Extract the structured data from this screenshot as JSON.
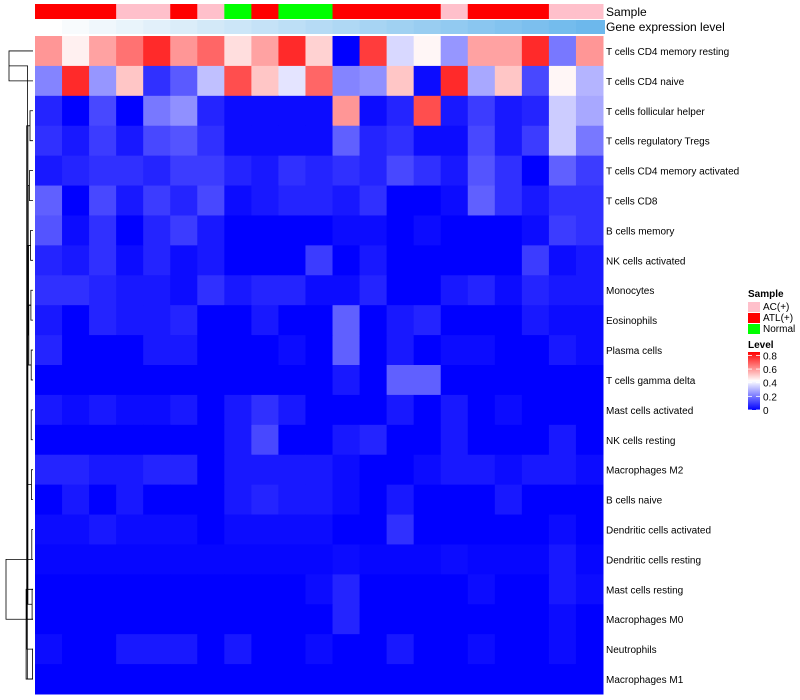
{
  "chart_data": {
    "type": "heatmap",
    "annotation_labels": {
      "sample": "Sample",
      "gene_expression": "Gene expression level"
    },
    "legend_sample": {
      "title": "Sample",
      "entries": [
        {
          "label": "AC(+)",
          "color": "#ffc0cb"
        },
        {
          "label": "ATL(+)",
          "color": "#ff0000"
        },
        {
          "label": "Normal",
          "color": "#00ff00"
        }
      ]
    },
    "legend_level": {
      "title": "Level",
      "ticks": [
        "0.8",
        "0.6",
        "0.4",
        "0.2",
        "0"
      ],
      "tick_values": [
        0.8,
        0.6,
        0.4,
        0.2,
        0.0
      ],
      "range": [
        0,
        0.85
      ]
    },
    "sample_groups": [
      "ATL(+)",
      "ATL(+)",
      "ATL(+)",
      "AC(+)",
      "AC(+)",
      "ATL(+)",
      "AC(+)",
      "Normal",
      "ATL(+)",
      "Normal",
      "Normal",
      "ATL(+)",
      "ATL(+)",
      "ATL(+)",
      "ATL(+)",
      "AC(+)",
      "ATL(+)",
      "ATL(+)",
      "ATL(+)",
      "AC(+)",
      "AC(+)"
    ],
    "gene_expression_colors": [
      "#ffffff",
      "#f8fbfd",
      "#f0f7fc",
      "#e9f4fb",
      "#e2f0fa",
      "#dbedf9",
      "#d3e9f8",
      "#cce6f8",
      "#c5e2f7",
      "#bddff6",
      "#b6dbf5",
      "#afd8f4",
      "#a7d4f3",
      "#a0d1f2",
      "#99cdf1",
      "#92caf1",
      "#8ac6f0",
      "#83c3ef",
      "#7cbfee",
      "#74bced",
      "#6db8ec"
    ],
    "rows": [
      "T cells CD4 memory resting",
      "T cells CD4 naive",
      "T cells follicular helper",
      "T cells regulatory  Tregs",
      "T cells CD4 memory activated",
      "T cells CD8",
      "B cells memory",
      "NK cells activated",
      "Monocytes",
      "Eosinophils",
      "Plasma cells",
      "T cells gamma delta",
      "Mast cells activated",
      "NK cells resting",
      "Macrophages M2",
      "B cells naive",
      "Dendritic cells activated",
      "Dendritic cells resting",
      "Mast cells resting",
      "Macrophages M0",
      "Neutrophils",
      "Macrophages M1"
    ],
    "values": [
      [
        0.6,
        0.45,
        0.58,
        0.66,
        0.78,
        0.6,
        0.68,
        0.48,
        0.58,
        0.78,
        0.5,
        0.0,
        0.75,
        0.36,
        0.44,
        0.25,
        0.58,
        0.58,
        0.78,
        0.2,
        0.6
      ],
      [
        0.22,
        0.78,
        0.25,
        0.52,
        0.08,
        0.15,
        0.32,
        0.72,
        0.52,
        0.38,
        0.68,
        0.22,
        0.24,
        0.52,
        0.02,
        0.78,
        0.28,
        0.52,
        0.12,
        0.44,
        0.3
      ],
      [
        0.06,
        0.0,
        0.12,
        0.0,
        0.2,
        0.24,
        0.06,
        0.02,
        0.02,
        0.02,
        0.02,
        0.6,
        0.02,
        0.06,
        0.72,
        0.04,
        0.1,
        0.04,
        0.06,
        0.34,
        0.28
      ],
      [
        0.08,
        0.04,
        0.1,
        0.04,
        0.12,
        0.14,
        0.08,
        0.02,
        0.02,
        0.02,
        0.02,
        0.16,
        0.06,
        0.08,
        0.02,
        0.02,
        0.12,
        0.04,
        0.1,
        0.34,
        0.2
      ],
      [
        0.04,
        0.06,
        0.08,
        0.08,
        0.06,
        0.1,
        0.1,
        0.06,
        0.04,
        0.08,
        0.06,
        0.08,
        0.06,
        0.12,
        0.08,
        0.04,
        0.14,
        0.08,
        0.0,
        0.16,
        0.1
      ],
      [
        0.16,
        0.0,
        0.12,
        0.04,
        0.1,
        0.06,
        0.12,
        0.02,
        0.04,
        0.06,
        0.06,
        0.04,
        0.08,
        0.0,
        0.0,
        0.02,
        0.16,
        0.08,
        0.04,
        0.08,
        0.08
      ],
      [
        0.14,
        0.02,
        0.08,
        0.0,
        0.06,
        0.1,
        0.04,
        0.0,
        0.0,
        0.0,
        0.0,
        0.02,
        0.02,
        0.0,
        0.02,
        0.0,
        0.0,
        0.0,
        0.02,
        0.1,
        0.08
      ],
      [
        0.06,
        0.04,
        0.08,
        0.02,
        0.06,
        0.02,
        0.04,
        0.0,
        0.0,
        0.0,
        0.1,
        0.0,
        0.04,
        0.0,
        0.0,
        0.0,
        0.0,
        0.0,
        0.1,
        0.02,
        0.04
      ],
      [
        0.08,
        0.08,
        0.06,
        0.04,
        0.04,
        0.02,
        0.08,
        0.04,
        0.06,
        0.06,
        0.02,
        0.02,
        0.06,
        0.0,
        0.0,
        0.04,
        0.06,
        0.02,
        0.06,
        0.04,
        0.04
      ],
      [
        0.04,
        0.0,
        0.06,
        0.04,
        0.04,
        0.06,
        0.0,
        0.0,
        0.04,
        0.0,
        0.0,
        0.16,
        0.0,
        0.04,
        0.06,
        0.0,
        0.0,
        0.0,
        0.04,
        0.02,
        0.02
      ],
      [
        0.06,
        0.0,
        0.0,
        0.0,
        0.04,
        0.04,
        0.0,
        0.0,
        0.0,
        0.02,
        0.0,
        0.16,
        0.0,
        0.04,
        0.0,
        0.02,
        0.02,
        0.0,
        0.0,
        0.04,
        0.02
      ],
      [
        0.0,
        0.0,
        0.0,
        0.0,
        0.0,
        0.0,
        0.0,
        0.0,
        0.0,
        0.0,
        0.0,
        0.04,
        0.0,
        0.16,
        0.16,
        0.0,
        0.0,
        0.0,
        0.0,
        0.0,
        0.0
      ],
      [
        0.04,
        0.02,
        0.04,
        0.02,
        0.02,
        0.04,
        0.0,
        0.04,
        0.08,
        0.04,
        0.0,
        0.0,
        0.0,
        0.04,
        0.0,
        0.04,
        0.0,
        0.02,
        0.0,
        0.0,
        0.0
      ],
      [
        0.0,
        0.0,
        0.0,
        0.0,
        0.0,
        0.0,
        0.0,
        0.04,
        0.12,
        0.0,
        0.0,
        0.04,
        0.06,
        0.0,
        0.0,
        0.04,
        0.0,
        0.0,
        0.0,
        0.04,
        0.0
      ],
      [
        0.06,
        0.06,
        0.04,
        0.04,
        0.06,
        0.06,
        0.0,
        0.04,
        0.04,
        0.04,
        0.04,
        0.02,
        0.0,
        0.0,
        0.02,
        0.04,
        0.04,
        0.02,
        0.04,
        0.04,
        0.02
      ],
      [
        0.0,
        0.04,
        0.0,
        0.04,
        0.0,
        0.0,
        0.0,
        0.04,
        0.06,
        0.04,
        0.04,
        0.02,
        0.0,
        0.04,
        0.0,
        0.0,
        0.0,
        0.04,
        0.0,
        0.0,
        0.0
      ],
      [
        0.02,
        0.02,
        0.04,
        0.02,
        0.02,
        0.02,
        0.0,
        0.02,
        0.02,
        0.02,
        0.02,
        0.0,
        0.0,
        0.08,
        0.0,
        0.0,
        0.0,
        0.0,
        0.0,
        0.02,
        0.0
      ],
      [
        0.01,
        0.01,
        0.01,
        0.01,
        0.01,
        0.01,
        0.01,
        0.01,
        0.01,
        0.01,
        0.01,
        0.02,
        0.01,
        0.01,
        0.01,
        0.02,
        0.01,
        0.01,
        0.01,
        0.04,
        0.01
      ],
      [
        0.0,
        0.0,
        0.0,
        0.0,
        0.0,
        0.0,
        0.0,
        0.0,
        0.0,
        0.0,
        0.02,
        0.06,
        0.0,
        0.0,
        0.0,
        0.0,
        0.02,
        0.0,
        0.0,
        0.04,
        0.02
      ],
      [
        0.0,
        0.0,
        0.0,
        0.0,
        0.0,
        0.0,
        0.0,
        0.0,
        0.0,
        0.0,
        0.0,
        0.06,
        0.0,
        0.0,
        0.0,
        0.0,
        0.0,
        0.0,
        0.0,
        0.02,
        0.0
      ],
      [
        0.02,
        0.0,
        0.0,
        0.04,
        0.04,
        0.04,
        0.0,
        0.04,
        0.0,
        0.0,
        0.02,
        0.0,
        0.0,
        0.04,
        0.0,
        0.0,
        0.02,
        0.0,
        0.0,
        0.02,
        0.0
      ],
      [
        0.0,
        0.0,
        0.0,
        0.0,
        0.0,
        0.0,
        0.0,
        0.0,
        0.0,
        0.0,
        0.0,
        0.0,
        0.0,
        0.0,
        0.0,
        0.0,
        0.0,
        0.0,
        0.0,
        0.0,
        0.0
      ]
    ],
    "dendrogram": {
      "merges": [
        [
          0,
          1
        ],
        [
          2,
          3
        ],
        [
          4,
          5
        ],
        [
          6,
          7
        ],
        [
          8,
          9
        ],
        [
          10,
          11
        ],
        [
          12,
          13
        ],
        [
          14,
          15
        ],
        [
          16,
          17
        ],
        [
          18,
          19
        ],
        [
          20,
          21
        ],
        [
          -6,
          -7
        ],
        [
          -8,
          -9
        ],
        [
          -10,
          -11
        ],
        [
          -12,
          -13
        ],
        [
          -14,
          -15
        ],
        [
          -16,
          -17
        ],
        [
          -18,
          -19
        ],
        [
          -20,
          -21
        ],
        [
          -22,
          -23
        ],
        [
          -24,
          -25
        ]
      ],
      "heights": [
        0.8,
        0.1,
        0.12,
        0.08,
        0.07,
        0.06,
        0.06,
        0.05,
        0.04,
        0.03,
        0.02,
        0.14,
        0.15,
        0.16,
        0.17,
        0.18,
        0.19,
        0.2,
        0.21,
        0.23,
        0.9
      ]
    }
  }
}
